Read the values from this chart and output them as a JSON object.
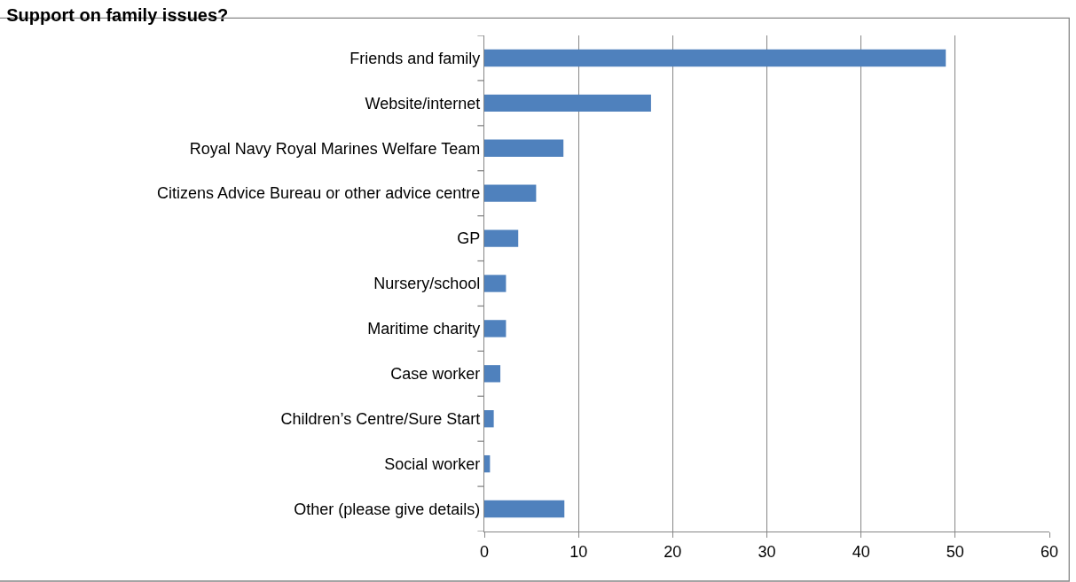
{
  "chart_data": {
    "type": "bar",
    "title": "Support on family issues?",
    "orientation": "horizontal",
    "categories": [
      "Friends and family",
      "Website/internet",
      "Royal Navy Royal Marines Welfare Team",
      "Citizens Advice Bureau or other advice centre",
      "GP",
      "Nursery/school",
      "Maritime charity",
      "Case worker",
      "Children’s Centre/Sure Start",
      "Social worker",
      "Other (please give details)"
    ],
    "values": [
      49.0,
      17.7,
      8.4,
      5.5,
      3.6,
      2.3,
      2.3,
      1.7,
      1.0,
      0.6,
      8.5
    ],
    "color": "#4f81bd",
    "xlim": [
      0,
      60
    ],
    "xticks": [
      0,
      10,
      20,
      30,
      40,
      50,
      60
    ],
    "grid": "x",
    "legend": false
  }
}
